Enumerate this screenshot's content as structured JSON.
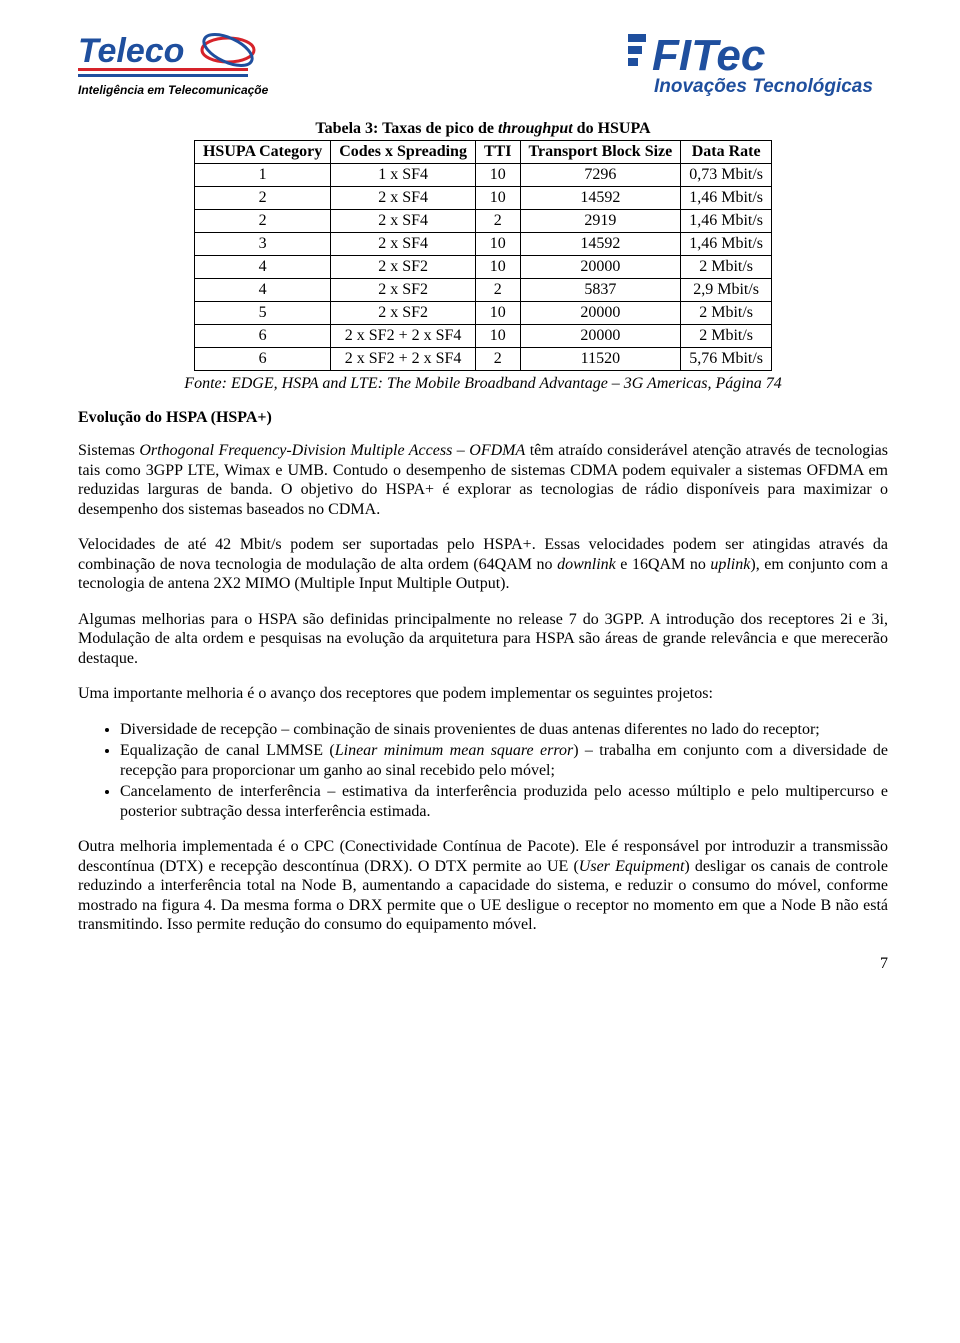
{
  "logos": {
    "teleco": {
      "name": "Teleco",
      "tagline": "Inteligência em Telecomunicações",
      "colors": {
        "blue": "#1f4f9e",
        "red": "#d6232a",
        "black": "#000000"
      }
    },
    "fitec": {
      "name": "FITec",
      "tagline": "Inovações Tecnológicas",
      "colors": {
        "blue": "#1f4f9e"
      }
    }
  },
  "table": {
    "title_prefix": "Tabela 3: Taxas de pico de ",
    "title_em": "throughput",
    "title_suffix": " do HSUPA",
    "columns": [
      "HSUPA Category",
      "Codes x Spreading",
      "TTI",
      "Transport Block Size",
      "Data Rate"
    ],
    "rows": [
      [
        "1",
        "1 x SF4",
        "10",
        "7296",
        "0,73 Mbit/s"
      ],
      [
        "2",
        "2 x SF4",
        "10",
        "14592",
        "1,46 Mbit/s"
      ],
      [
        "2",
        "2 x SF4",
        "2",
        "2919",
        "1,46 Mbit/s"
      ],
      [
        "3",
        "2 x SF4",
        "10",
        "14592",
        "1,46 Mbit/s"
      ],
      [
        "4",
        "2 x SF2",
        "10",
        "20000",
        "2 Mbit/s"
      ],
      [
        "4",
        "2 x SF2",
        "2",
        "5837",
        "2,9 Mbit/s"
      ],
      [
        "5",
        "2 x SF2",
        "10",
        "20000",
        "2 Mbit/s"
      ],
      [
        "6",
        "2 x SF2 + 2 x SF4",
        "10",
        "20000",
        "2 Mbit/s"
      ],
      [
        "6",
        "2 x SF2 + 2 x SF4",
        "2",
        "11520",
        "5,76 Mbit/s"
      ]
    ],
    "col_align": [
      "center",
      "center",
      "center",
      "center",
      "center"
    ]
  },
  "fonte": "Fonte: EDGE, HSPA and LTE: The Mobile Broadband Advantage – 3G Americas, Página 74",
  "section_title": "Evolução do HSPA (HSPA+)",
  "paragraphs": {
    "p1_pre": "Sistemas ",
    "p1_em1": "Orthogonal Frequency-Division Multiple Access – OFDMA",
    "p1_rest": " têm atraído considerável atenção através de tecnologias tais como 3GPP LTE, Wimax e UMB. Contudo o desempenho de sistemas CDMA podem equivaler a sistemas OFDMA em reduzidas larguras de banda. O objetivo do HSPA+ é explorar as tecnologias de rádio disponíveis para maximizar o desempenho dos sistemas baseados no CDMA.",
    "p2_pre": "Velocidades de até 42 Mbit/s podem ser suportadas pelo HSPA+. Essas velocidades podem ser atingidas através da combinação de nova tecnologia de modulação de alta ordem (64QAM no ",
    "p2_em1": "downlink",
    "p2_mid": " e 16QAM no ",
    "p2_em2": "uplink",
    "p2_rest": "), em conjunto com a tecnologia de antena 2X2 MIMO (Multiple Input Multiple Output).",
    "p3": "Algumas melhorias para o HSPA são definidas principalmente no release 7 do 3GPP. A introdução dos receptores 2i e 3i, Modulação de alta ordem e pesquisas na evolução da arquitetura para HSPA são áreas de grande relevância e que merecerão destaque.",
    "p4": "Uma importante melhoria é o avanço dos receptores que podem implementar os seguintes projetos:",
    "p5_pre": "Outra melhoria implementada é o CPC (Conectividade Contínua de Pacote). Ele é responsável por introduzir a transmissão descontínua (DTX) e recepção descontínua (DRX). O DTX permite ao UE (",
    "p5_em1": "User Equipment",
    "p5_rest": ") desligar os canais de controle reduzindo a interferência total na Node B, aumentando a capacidade do sistema, e reduzir o consumo do móvel, conforme mostrado na figura 4. Da mesma forma o DRX permite que o UE desligue o receptor no momento em que a Node B não está transmitindo. Isso permite redução do consumo do equipamento móvel."
  },
  "bullets": {
    "b1": "Diversidade de recepção – combinação de sinais provenientes de duas antenas diferentes no lado do receptor;",
    "b2_pre": "Equalização de canal LMMSE (",
    "b2_em": "Linear minimum mean square error",
    "b2_rest": ") – trabalha em conjunto com a diversidade de recepção para proporcionar um ganho ao sinal recebido pelo móvel;",
    "b3": "Cancelamento de interferência – estimativa da interferência produzida pelo acesso múltiplo e pelo multipercurso e posterior subtração dessa interferência estimada."
  },
  "page_number": "7"
}
